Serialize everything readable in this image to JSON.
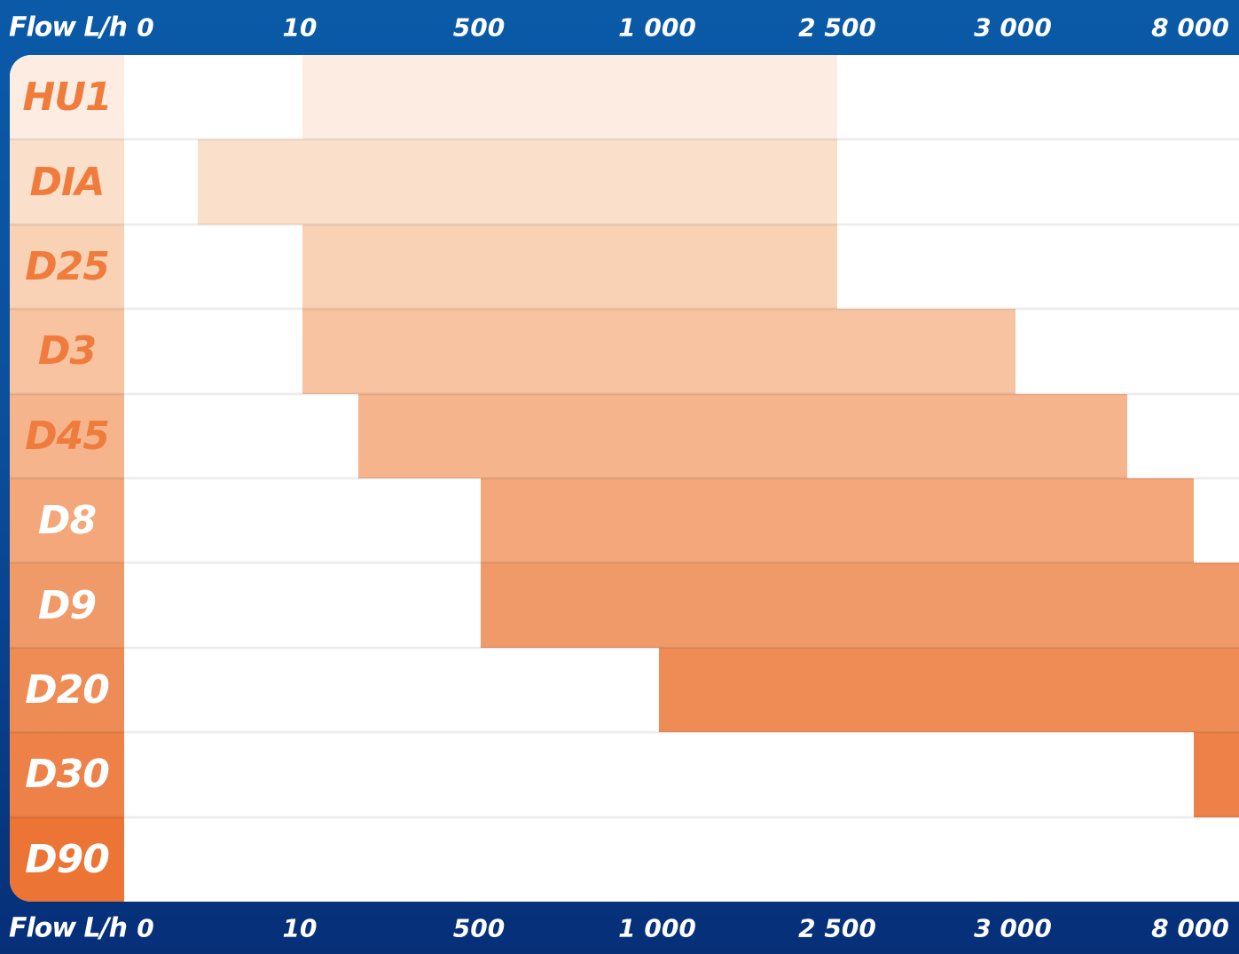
{
  "chart_data": {
    "type": "bar",
    "orientation": "horizontal-range",
    "axis_title": "Flow L/h",
    "ticks": [
      "0",
      "10",
      "500",
      "1 000",
      "2 500",
      "3 000",
      "8 000"
    ],
    "series": [
      {
        "name": "HU1",
        "from": 10,
        "to": 2500,
        "color": "#fdece1",
        "label_bg": "#fdece1",
        "label_color": "#ef7c3c"
      },
      {
        "name": "DIA",
        "from": 5,
        "to": 2500,
        "color": "#fadfca",
        "label_bg": "#fadfca",
        "label_color": "#ef7c3c"
      },
      {
        "name": "D25",
        "from": 10,
        "to": 2500,
        "color": "#f9d1b5",
        "label_bg": "#f9d1b5",
        "label_color": "#ef7c3c"
      },
      {
        "name": "D3",
        "from": 10,
        "to": 3000,
        "color": "#f7c3a0",
        "label_bg": "#f7c3a0",
        "label_color": "#ef7c3c"
      },
      {
        "name": "D45",
        "from": 100,
        "to": 5000,
        "color": "#f5b48b",
        "label_bg": "#f5b48b",
        "label_color": "#ef7c3c"
      },
      {
        "name": "D8",
        "from": 500,
        "to": 7000,
        "color": "#f3a77a",
        "label_bg": "#f3a77a",
        "label_color": "#ffffff"
      },
      {
        "name": "D9",
        "from": 500,
        "to": 10000,
        "color": "#f19a69",
        "label_bg": "#f19a69",
        "label_color": "#ffffff"
      },
      {
        "name": "D20",
        "from": 1000,
        "to": 10000,
        "color": "#ef8c55",
        "label_bg": "#ef8c55",
        "label_color": "#ffffff"
      },
      {
        "name": "D30",
        "from": 7000,
        "to": 10000,
        "color": "#ee8148",
        "label_bg": "#ee8148",
        "label_color": "#ffffff"
      },
      {
        "name": "D90",
        "from": null,
        "to": null,
        "color": "#ec7535",
        "label_bg": "#ec7535",
        "label_color": "#ffffff"
      }
    ]
  }
}
